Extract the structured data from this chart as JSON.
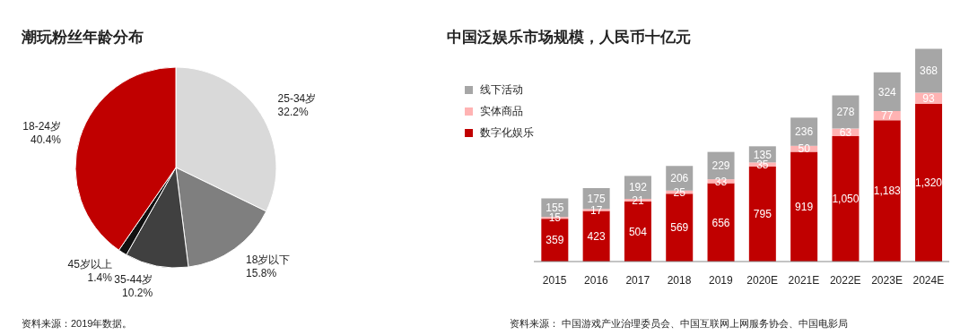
{
  "chart_data": [
    {
      "type": "pie",
      "title": "潮玩粉丝年龄分布",
      "categories": [
        "25-34岁",
        "18岁以下",
        "35-44岁",
        "45岁以上",
        "18-24岁"
      ],
      "values": [
        32.2,
        15.8,
        10.2,
        1.4,
        40.4
      ],
      "colors": [
        "#d9d9d9",
        "#7f7f7f",
        "#404040",
        "#111111",
        "#c00000"
      ],
      "value_labels": [
        "32.2%",
        "15.8%",
        "10.2%",
        "1.4%",
        "40.4%"
      ],
      "annotations": [
        "资料来源：2019年数据。"
      ]
    },
    {
      "type": "bar",
      "title": "中国泛娱乐市场规模，人民币十亿元",
      "stacked": true,
      "data_labels": true,
      "legend": "top left",
      "categories": [
        "2015",
        "2016",
        "2017",
        "2018",
        "2019",
        "2020E",
        "2021E",
        "2022E",
        "2023E",
        "2024E"
      ],
      "series": [
        {
          "name": "数字化娱乐",
          "color": "#c00000",
          "values": [
            359,
            423,
            504,
            569,
            656,
            795,
            919,
            1050,
            1183,
            1320
          ],
          "value_labels": [
            "359",
            "423",
            "504",
            "569",
            "656",
            "795",
            "919",
            "1,050",
            "1,183",
            "1,320"
          ]
        },
        {
          "name": "实体商品",
          "color": "#ffb3b3",
          "values": [
            15,
            17,
            21,
            25,
            33,
            35,
            50,
            63,
            77,
            93
          ]
        },
        {
          "name": "线下活动",
          "color": "#a6a6a6",
          "values": [
            155,
            175,
            192,
            206,
            229,
            135,
            236,
            278,
            324,
            368
          ]
        }
      ],
      "annotations": [
        "资料来源： 中国游戏产业治理委员会、中国互联网上网服务协会、中国电影局"
      ]
    }
  ]
}
